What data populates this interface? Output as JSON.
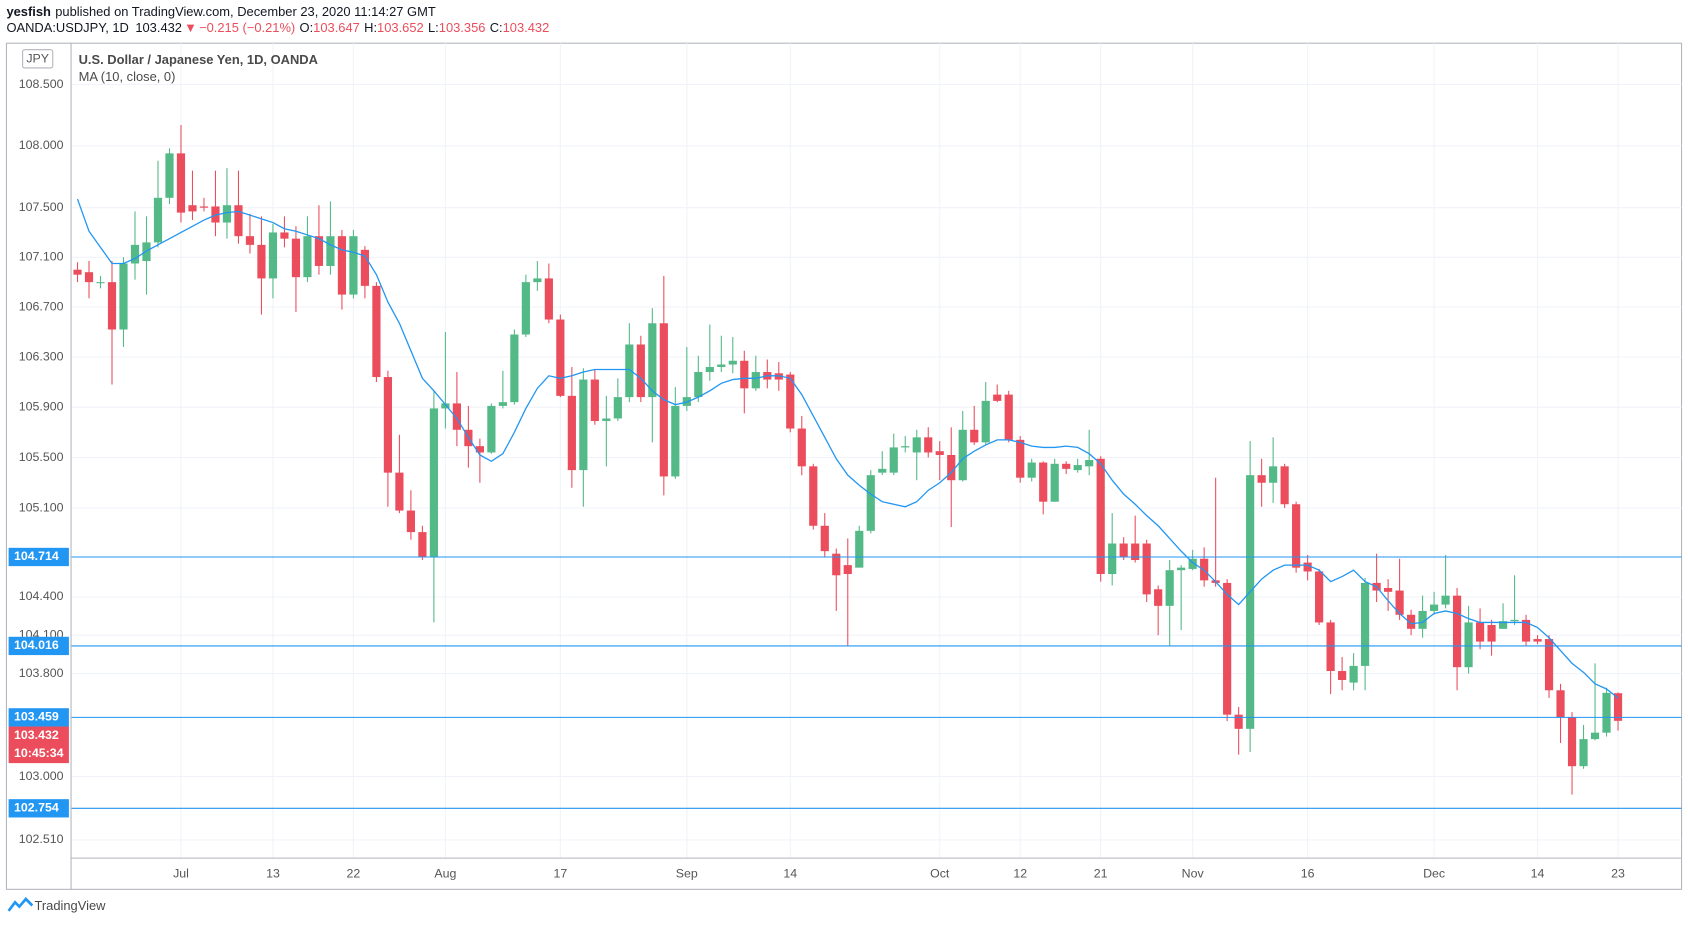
{
  "header": {
    "author": "yesfish",
    "published": "published on TradingView.com, December 23, 2020 11:14:27 GMT",
    "symbol": "OANDA:USDJPY, 1D",
    "last": "103.432",
    "arrow": "▼",
    "change": "−0.215 (−0.21%)",
    "ohlc": [
      {
        "key": "O:",
        "value": "103.647"
      },
      {
        "key": "H:",
        "value": "103.652"
      },
      {
        "key": "L:",
        "value": "103.356"
      },
      {
        "key": "C:",
        "value": "103.432"
      }
    ]
  },
  "chart_data": {
    "type": "candlestick",
    "title": "U.S. Dollar / Japanese Yen, 1D, OANDA",
    "currency": "JPY",
    "log": true,
    "grid": true,
    "up_color": "#53b987",
    "down_color": "#eb4d5c",
    "ylim": [
      102.37,
      108.82
    ],
    "yticks": [
      {
        "value": 108.5,
        "label": "108.500"
      },
      {
        "value": 108,
        "label": "108.000"
      },
      {
        "value": 107.5,
        "label": "107.500"
      },
      {
        "value": 107.1,
        "label": "107.100"
      },
      {
        "value": 106.7,
        "label": "106.700"
      },
      {
        "value": 106.3,
        "label": "106.300"
      },
      {
        "value": 105.9,
        "label": "105.900"
      },
      {
        "value": 105.5,
        "label": "105.500"
      },
      {
        "value": 105.1,
        "label": "105.100"
      },
      {
        "value": 104.4,
        "label": "104.400"
      },
      {
        "value": 104.1,
        "label": "104.100"
      },
      {
        "value": 103.8,
        "label": "103.800"
      },
      {
        "value": 103,
        "label": "103.000"
      },
      {
        "value": 102.51,
        "label": "102.510"
      }
    ],
    "categories": [
      null,
      null,
      null,
      null,
      null,
      null,
      null,
      null,
      null,
      "Jul",
      null,
      null,
      null,
      null,
      null,
      null,
      null,
      "13",
      null,
      null,
      null,
      null,
      null,
      null,
      "22",
      null,
      null,
      null,
      null,
      null,
      null,
      null,
      "Aug",
      null,
      null,
      null,
      null,
      null,
      null,
      null,
      null,
      null,
      "17",
      null,
      null,
      null,
      null,
      null,
      null,
      null,
      null,
      null,
      null,
      "Sep",
      null,
      null,
      null,
      null,
      null,
      null,
      null,
      null,
      "14",
      null,
      null,
      null,
      null,
      null,
      null,
      null,
      null,
      null,
      null,
      null,
      null,
      "Oct",
      null,
      null,
      null,
      null,
      null,
      null,
      "12",
      null,
      null,
      null,
      null,
      null,
      null,
      "21",
      null,
      null,
      null,
      null,
      null,
      null,
      null,
      "Nov",
      null,
      null,
      null,
      null,
      null,
      null,
      null,
      null,
      null,
      "16",
      null,
      null,
      null,
      null,
      null,
      null,
      null,
      null,
      null,
      null,
      "Dec",
      null,
      null,
      null,
      null,
      null,
      null,
      null,
      null,
      "14",
      null,
      null,
      null,
      null,
      null,
      null,
      "23"
    ],
    "open": [
      107.0,
      106.98,
      106.9,
      106.9,
      106.52,
      107.05,
      107.07,
      107.22,
      107.58,
      107.94,
      107.52,
      107.51,
      107.51,
      107.38,
      107.52,
      107.27,
      107.2,
      106.93,
      107.3,
      107.25,
      106.94,
      107.27,
      107.03,
      107.27,
      106.8,
      107.16,
      106.87,
      106.14,
      105.38,
      105.08,
      104.91,
      104.71,
      105.89,
      105.93,
      105.72,
      105.59,
      105.54,
      105.91,
      105.94,
      106.48,
      106.9,
      106.93,
      106.6,
      105.99,
      105.4,
      106.12,
      105.79,
      105.81,
      105.98,
      106.4,
      105.98,
      106.57,
      105.35,
      105.91,
      105.98,
      106.18,
      106.22,
      106.24,
      106.27,
      106.05,
      106.18,
      106.17,
      106.16,
      105.73,
      105.43,
      104.96,
      104.74,
      104.65,
      104.63,
      104.92,
      105.38,
      105.38,
      105.58,
      105.54,
      105.66,
      105.55,
      105.52,
      105.32,
      105.72,
      105.62,
      106.0,
      106.0,
      105.64,
      105.34,
      105.46,
      105.15,
      105.45,
      105.4,
      105.43,
      105.49,
      104.58,
      104.82,
      104.82,
      104.82,
      104.46,
      104.33,
      104.61,
      104.62,
      104.7,
      104.53,
      104.51,
      103.48,
      103.37,
      105.36,
      105.3,
      105.43,
      105.13,
      104.67,
      104.6,
      104.2,
      103.82,
      103.73,
      103.86,
      104.51,
      104.47,
      104.45,
      104.26,
      104.15,
      104.29,
      104.34,
      104.41,
      103.85,
      104.2,
      104.18,
      104.15,
      104.21,
      104.22,
      104.07,
      104.07,
      103.67,
      103.46,
      103.08,
      103.29,
      103.34,
      103.647
    ],
    "high": [
      107.06,
      107.07,
      106.95,
      107.07,
      107.1,
      107.47,
      107.43,
      107.88,
      107.98,
      108.17,
      107.8,
      107.58,
      107.8,
      107.82,
      107.8,
      107.45,
      107.43,
      107.37,
      107.43,
      107.35,
      107.43,
      107.52,
      107.55,
      107.32,
      107.32,
      107.19,
      106.9,
      106.19,
      105.68,
      105.24,
      104.96,
      106.03,
      106.5,
      106.18,
      105.91,
      105.65,
      105.93,
      106.19,
      106.52,
      106.96,
      107.07,
      107.05,
      106.64,
      106.22,
      106.21,
      106.2,
      105.99,
      106.13,
      106.57,
      106.47,
      106.69,
      106.95,
      106.06,
      106.38,
      106.31,
      106.56,
      106.47,
      106.46,
      106.35,
      106.31,
      106.28,
      106.26,
      106.18,
      105.83,
      105.45,
      105.06,
      104.78,
      104.86,
      104.96,
      105.4,
      105.55,
      105.69,
      105.67,
      105.72,
      105.74,
      105.63,
      105.74,
      105.87,
      105.91,
      106.1,
      106.08,
      106.03,
      105.67,
      105.49,
      105.47,
      105.49,
      105.47,
      105.49,
      105.72,
      105.51,
      105.06,
      104.87,
      105.04,
      104.85,
      104.49,
      104.69,
      104.65,
      104.77,
      104.79,
      105.34,
      104.54,
      103.54,
      105.63,
      105.49,
      105.66,
      105.45,
      105.15,
      104.73,
      104.62,
      104.22,
      103.93,
      103.96,
      104.55,
      104.74,
      104.54,
      104.7,
      104.3,
      104.41,
      104.44,
      104.73,
      104.47,
      104.33,
      104.31,
      104.22,
      104.35,
      104.57,
      104.26,
      104.1,
      104.1,
      103.72,
      103.5,
      103.4,
      103.88,
      103.69,
      103.652
    ],
    "low": [
      106.9,
      106.77,
      106.85,
      106.08,
      106.38,
      106.92,
      106.8,
      107.18,
      107.53,
      107.38,
      107.4,
      107.47,
      107.27,
      107.25,
      107.21,
      107.13,
      106.64,
      106.77,
      107.18,
      106.66,
      106.9,
      106.96,
      106.96,
      106.68,
      106.77,
      106.77,
      106.1,
      105.11,
      105.06,
      104.85,
      104.69,
      104.2,
      105.73,
      105.59,
      105.42,
      105.3,
      105.53,
      105.89,
      105.92,
      106.46,
      106.83,
      106.57,
      105.98,
      105.26,
      105.11,
      105.76,
      105.43,
      105.79,
      105.94,
      105.94,
      105.62,
      105.2,
      105.33,
      105.87,
      105.94,
      106.11,
      106.18,
      106.17,
      105.85,
      106.03,
      106.05,
      106.03,
      105.7,
      105.36,
      104.93,
      104.71,
      104.29,
      104.02,
      104.65,
      104.9,
      105.36,
      105.36,
      105.54,
      105.32,
      105.5,
      105.32,
      104.95,
      105.31,
      105.6,
      105.6,
      105.94,
      105.62,
      105.3,
      105.31,
      105.05,
      105.15,
      105.37,
      105.38,
      105.36,
      104.52,
      104.49,
      104.69,
      104.67,
      104.36,
      104.1,
      104.02,
      104.14,
      104.61,
      104.48,
      104.48,
      103.43,
      103.17,
      103.19,
      105.11,
      105.14,
      105.1,
      104.59,
      104.53,
      104.18,
      103.64,
      103.67,
      103.67,
      103.67,
      104.36,
      104.29,
      104.22,
      104.1,
      104.08,
      104.26,
      104.31,
      103.67,
      103.8,
      103.99,
      103.94,
      104.15,
      104.18,
      104.02,
      104.03,
      103.61,
      103.26,
      102.86,
      103.06,
      103.28,
      103.31,
      103.356
    ],
    "close": [
      106.96,
      106.9,
      106.9,
      106.52,
      107.05,
      107.2,
      107.22,
      107.58,
      107.94,
      107.46,
      107.47,
      107.5,
      107.38,
      107.52,
      107.27,
      107.2,
      106.93,
      107.3,
      107.25,
      106.94,
      107.27,
      107.03,
      107.27,
      106.8,
      107.27,
      106.87,
      106.14,
      105.38,
      105.08,
      104.91,
      104.71,
      105.89,
      105.93,
      105.72,
      105.59,
      105.54,
      105.91,
      105.94,
      106.48,
      106.9,
      106.93,
      106.6,
      105.99,
      105.4,
      106.12,
      105.79,
      105.81,
      105.98,
      106.4,
      105.98,
      106.57,
      105.35,
      105.91,
      105.98,
      106.18,
      106.22,
      106.24,
      106.27,
      106.05,
      106.18,
      106.12,
      106.12,
      105.73,
      105.43,
      104.96,
      104.76,
      104.57,
      104.58,
      104.92,
      105.36,
      105.41,
      105.58,
      105.59,
      105.66,
      105.54,
      105.52,
      105.32,
      105.72,
      105.62,
      105.95,
      105.95,
      105.64,
      105.34,
      105.46,
      105.15,
      105.45,
      105.41,
      105.44,
      105.48,
      104.58,
      104.82,
      104.71,
      104.69,
      104.42,
      104.33,
      104.61,
      104.63,
      104.7,
      104.53,
      104.51,
      103.48,
      103.37,
      105.36,
      105.3,
      105.43,
      105.13,
      104.63,
      104.6,
      104.2,
      103.82,
      103.75,
      103.86,
      104.51,
      104.45,
      104.44,
      104.26,
      104.15,
      104.29,
      104.34,
      104.41,
      103.85,
      104.2,
      104.05,
      104.05,
      104.21,
      104.22,
      104.05,
      104.05,
      103.67,
      103.46,
      103.08,
      103.29,
      103.34,
      103.65,
      103.432
    ],
    "series": [
      {
        "name": "MA (10, close, 0)",
        "color": "#2196f3",
        "values": [
          107.57,
          107.31,
          107.18,
          107.05,
          107.05,
          107.09,
          107.15,
          107.2,
          107.25,
          107.3,
          107.35,
          107.4,
          107.44,
          107.46,
          107.47,
          107.44,
          107.41,
          107.38,
          107.33,
          107.31,
          107.28,
          107.25,
          107.2,
          107.16,
          107.14,
          107.11,
          106.96,
          106.74,
          106.57,
          106.35,
          106.13,
          106.03,
          105.92,
          105.81,
          105.66,
          105.52,
          105.47,
          105.53,
          105.7,
          105.89,
          106.05,
          106.15,
          106.13,
          106.15,
          106.18,
          106.2,
          106.2,
          106.2,
          106.2,
          106.13,
          106.03,
          105.96,
          105.92,
          105.94,
          105.98,
          106.03,
          106.09,
          106.12,
          106.13,
          106.13,
          106.15,
          106.15,
          106.13,
          106.0,
          105.83,
          105.66,
          105.49,
          105.36,
          105.28,
          105.21,
          105.15,
          105.13,
          105.11,
          105.15,
          105.24,
          105.3,
          105.38,
          105.49,
          105.55,
          105.6,
          105.64,
          105.64,
          105.62,
          105.59,
          105.58,
          105.58,
          105.59,
          105.58,
          105.53,
          105.45,
          105.32,
          105.21,
          105.13,
          105.04,
          104.96,
          104.86,
          104.76,
          104.67,
          104.61,
          104.52,
          104.42,
          104.34,
          104.44,
          104.54,
          104.61,
          104.65,
          104.65,
          104.65,
          104.61,
          104.52,
          104.56,
          104.61,
          104.52,
          104.48,
          104.37,
          104.27,
          104.19,
          104.2,
          104.27,
          104.29,
          104.27,
          104.23,
          104.2,
          104.2,
          104.2,
          104.2,
          104.2,
          104.16,
          104.08,
          103.98,
          103.88,
          103.81,
          103.72,
          103.68,
          103.61
        ]
      }
    ],
    "price_lines": [
      104.714,
      104.016,
      103.459,
      102.754
    ],
    "price_line_color": "#2196f3",
    "current_price": 103.432,
    "countdown": "10:45:34"
  },
  "footer": {
    "brand": "TradingView"
  }
}
